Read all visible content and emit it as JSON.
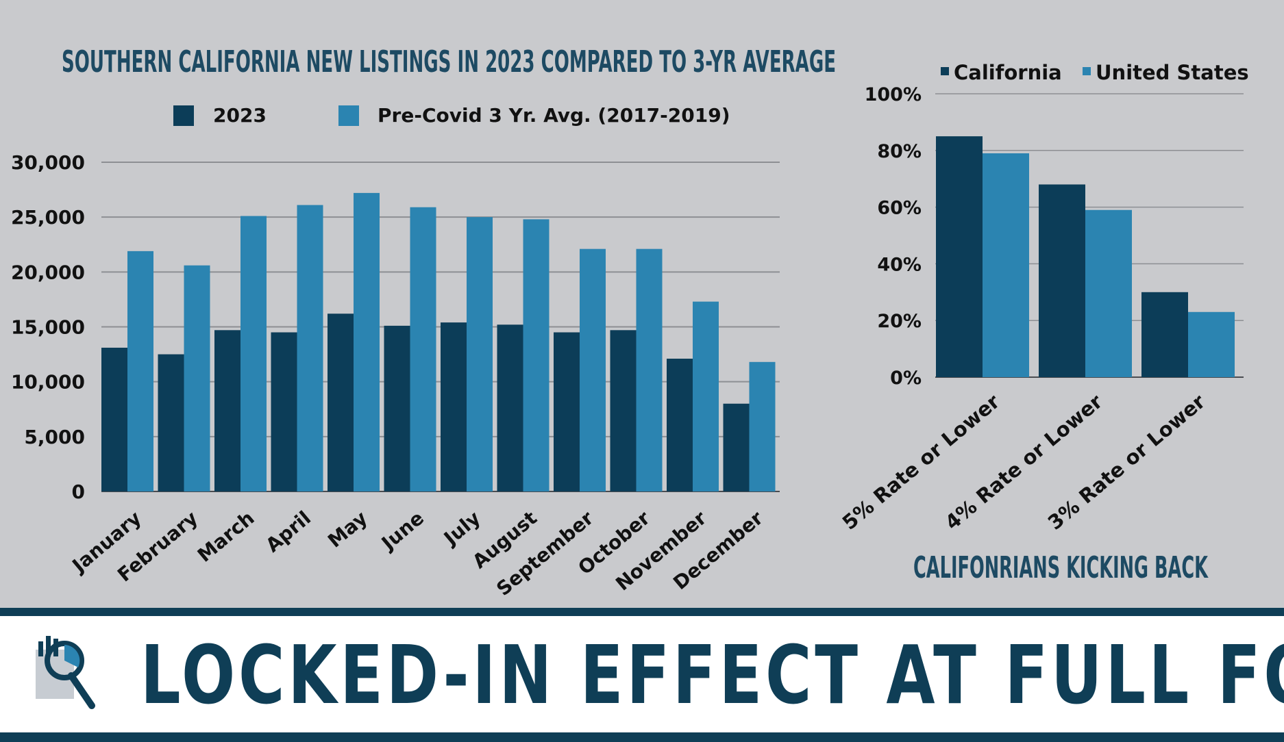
{
  "colors": {
    "series_2023": "#0c3d58",
    "series_avg": "#2b84b1",
    "california": "#0c3d58",
    "united_states": "#2b84b1",
    "title": "#1d4a63",
    "background": "#c9cacd",
    "banner_accent": "#0f3e56"
  },
  "chart_data": [
    {
      "type": "bar",
      "title": "SOUTHERN CALIFORNIA NEW LISTINGS IN 2023 COMPARED TO 3-YR AVERAGE",
      "categories": [
        "January",
        "February",
        "March",
        "April",
        "May",
        "June",
        "July",
        "August",
        "September",
        "October",
        "November",
        "December"
      ],
      "series": [
        {
          "name": "2023",
          "values": [
            13100,
            12500,
            14700,
            14500,
            16200,
            15100,
            15400,
            15200,
            14500,
            14700,
            12100,
            8000
          ]
        },
        {
          "name": "Pre-Covid 3 Yr. Avg. (2017-2019)",
          "values": [
            21900,
            20600,
            25100,
            26100,
            27200,
            25900,
            25000,
            24800,
            22100,
            22100,
            17300,
            11800
          ]
        }
      ],
      "ylim": [
        0,
        30000
      ],
      "yticks": [
        "0",
        "5,000",
        "10,000",
        "15,000",
        "20,000",
        "25,000",
        "30,000"
      ],
      "ytick_values": [
        0,
        5000,
        10000,
        15000,
        20000,
        25000,
        30000
      ],
      "grid": true,
      "legend": "top"
    },
    {
      "type": "bar",
      "title": "CALIFONRIANS KICKING BACK",
      "categories": [
        "5% Rate or Lower",
        "4% Rate or Lower",
        "3% Rate or Lower"
      ],
      "series": [
        {
          "name": "California",
          "values": [
            85,
            68,
            30
          ]
        },
        {
          "name": "United States",
          "values": [
            79,
            59,
            23
          ]
        }
      ],
      "ylim": [
        0,
        100
      ],
      "yticks": [
        "0%",
        "20%",
        "40%",
        "60%",
        "80%",
        "100%"
      ],
      "ytick_values": [
        0,
        20,
        40,
        60,
        80,
        100
      ],
      "grid": true,
      "legend": "top"
    }
  ],
  "banner": {
    "title": "LOCKED-IN EFFECT AT FULL FORCE"
  },
  "logo": {
    "icon": "magnifier-chart-logo"
  }
}
